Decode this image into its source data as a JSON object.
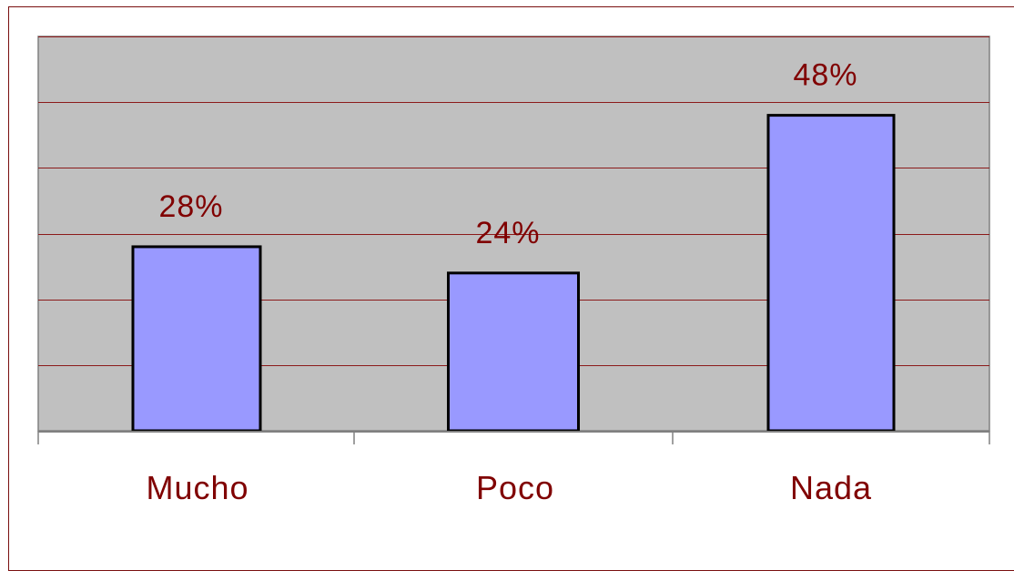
{
  "colors": {
    "plot_background": "#c0c0c0",
    "bar_fill": "#9999ff",
    "bar_stroke": "#000000",
    "gridline": "#8b1a1a",
    "text": "#800000",
    "frame": "#7a1010",
    "axis": "#808080"
  },
  "chart_data": {
    "type": "bar",
    "title": "",
    "xlabel": "",
    "ylabel": "",
    "categories": [
      "Mucho",
      "Poco",
      "Nada"
    ],
    "values": [
      28,
      24,
      48
    ],
    "data_labels": [
      "28%",
      "24%",
      "48%"
    ],
    "ylim": [
      0,
      60
    ],
    "y_unit": "%",
    "grid": true,
    "gridline_step": 10,
    "legend": "none"
  }
}
